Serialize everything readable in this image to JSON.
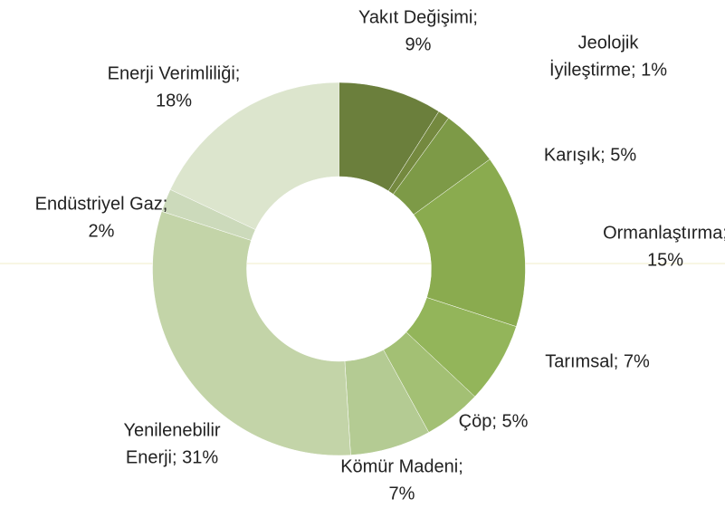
{
  "chart_data": {
    "type": "donut",
    "labels": [
      [
        "Yakıt Değişimi;",
        "9%"
      ],
      [
        "Jeolojik",
        "İyileştirme; 1%"
      ],
      [
        "Karışık; 5%"
      ],
      [
        "Ormanlaştırma;",
        "15%"
      ],
      [
        "Tarımsal; 7%"
      ],
      [
        "Çöp; 5%"
      ],
      [
        "Kömür Madeni;",
        "7%"
      ],
      [
        "Yenilenebilir",
        "Enerji; 31%"
      ],
      [
        "Endüstriyel Gaz;",
        "2%"
      ],
      [
        "Enerji Verimliliği;",
        "18%"
      ]
    ],
    "values": [
      9,
      1,
      5,
      15,
      7,
      5,
      7,
      31,
      2,
      18
    ],
    "colors": [
      "#6b7f3c",
      "#74893f",
      "#7d9a47",
      "#8aab4f",
      "#93b55a",
      "#a3c074",
      "#b4cb93",
      "#c3d4a8",
      "#ccdabb",
      "#dce5cd"
    ]
  }
}
